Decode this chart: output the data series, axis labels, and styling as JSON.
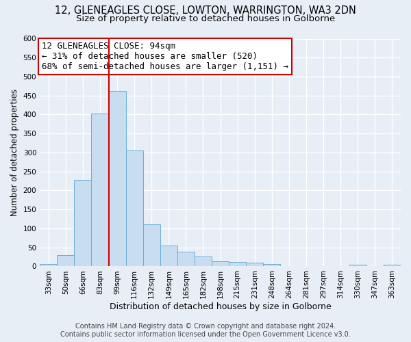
{
  "title1": "12, GLENEAGLES CLOSE, LOWTON, WARRINGTON, WA3 2DN",
  "title2": "Size of property relative to detached houses in Golborne",
  "xlabel": "Distribution of detached houses by size in Golborne",
  "ylabel": "Number of detached properties",
  "categories": [
    "33sqm",
    "50sqm",
    "66sqm",
    "83sqm",
    "99sqm",
    "116sqm",
    "132sqm",
    "149sqm",
    "165sqm",
    "182sqm",
    "198sqm",
    "215sqm",
    "231sqm",
    "248sqm",
    "264sqm",
    "281sqm",
    "297sqm",
    "314sqm",
    "330sqm",
    "347sqm",
    "363sqm"
  ],
  "values": [
    6,
    30,
    228,
    403,
    463,
    306,
    110,
    54,
    39,
    26,
    14,
    12,
    10,
    6,
    0,
    0,
    0,
    0,
    5,
    0,
    5
  ],
  "bar_color": "#c8ddf0",
  "bar_edge_color": "#6aaed6",
  "red_line_index": 4,
  "annotation_line1": "12 GLENEAGLES CLOSE: 94sqm",
  "annotation_line2": "← 31% of detached houses are smaller (520)",
  "annotation_line3": "68% of semi-detached houses are larger (1,151) →",
  "red_line_color": "#cc0000",
  "footer1": "Contains HM Land Registry data © Crown copyright and database right 2024.",
  "footer2": "Contains public sector information licensed under the Open Government Licence v3.0.",
  "ylim_max": 600,
  "yticks": [
    0,
    50,
    100,
    150,
    200,
    250,
    300,
    350,
    400,
    450,
    500,
    550,
    600
  ],
  "background_color": "#e8eef6",
  "grid_color": "#ffffff",
  "title1_fontsize": 10.5,
  "title2_fontsize": 9.5,
  "xlabel_fontsize": 9,
  "ylabel_fontsize": 8.5,
  "tick_fontsize": 7.5,
  "annotation_fontsize": 9,
  "footer_fontsize": 7
}
